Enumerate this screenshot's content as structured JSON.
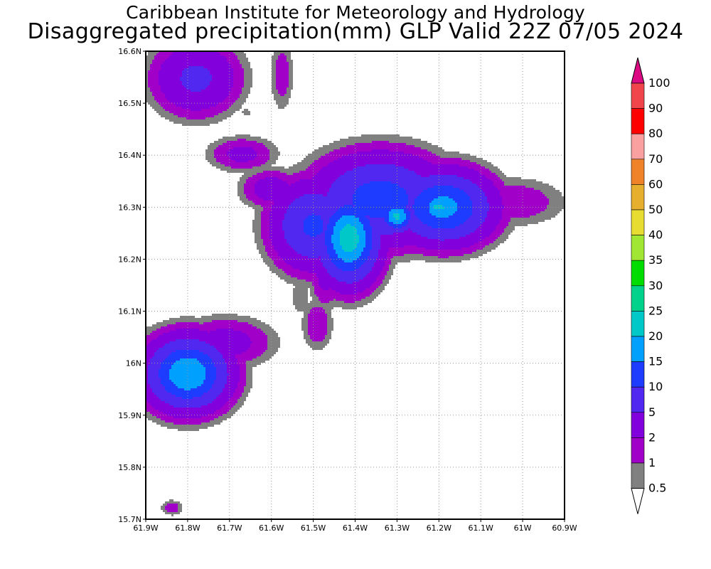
{
  "header": {
    "institution": "Caribbean Institute for Meteorology and Hydrology",
    "product": "Disaggregated precipitation(mm) GLP Valid 22Z 07/05 2024"
  },
  "map": {
    "lon_range": [
      -61.9,
      -60.9
    ],
    "lat_range": [
      15.7,
      16.6
    ],
    "grid": "dotted",
    "x_ticks": [
      "61.9W",
      "61.8W",
      "61.7W",
      "61.6W",
      "61.5W",
      "61.4W",
      "61.3W",
      "61.2W",
      "61.1W",
      "61W",
      "60.9W"
    ],
    "y_ticks": [
      "15.7N",
      "15.8N",
      "15.9N",
      "16N",
      "16.1N",
      "16.2N",
      "16.3N",
      "16.4N",
      "16.5N",
      "16.6N"
    ]
  },
  "colorbar": {
    "labels": [
      "0.5",
      "1",
      "2",
      "5",
      "10",
      "15",
      "20",
      "25",
      "30",
      "35",
      "40",
      "50",
      "60",
      "70",
      "80",
      "90",
      "100"
    ],
    "colors": [
      "#ffffff",
      "#808080",
      "#a000c8",
      "#8200dc",
      "#5028f0",
      "#1e3cff",
      "#00a0ff",
      "#00c8c8",
      "#00d28c",
      "#00dc00",
      "#a0e632",
      "#e6dc32",
      "#e6af2d",
      "#f08228",
      "#faa0a0",
      "#ff0000",
      "#f0464b",
      "#dc0a82"
    ]
  },
  "precip_cells": [
    {
      "lon": -61.78,
      "lat": 16.548,
      "rx": 0.105,
      "ry": 0.072,
      "peak": 6
    },
    {
      "lon": -61.575,
      "lat": 16.555,
      "rx": 0.03,
      "ry": 0.075,
      "peak": 1.6
    },
    {
      "lon": -61.66,
      "lat": 16.482,
      "rx": 0.018,
      "ry": 0.013,
      "peak": 0.7
    },
    {
      "lon": -61.67,
      "lat": 16.402,
      "rx": 0.085,
      "ry": 0.035,
      "peak": 2.6
    },
    {
      "lon": -61.6,
      "lat": 16.335,
      "rx": 0.075,
      "ry": 0.04,
      "peak": 3.2
    },
    {
      "lon": -61.5,
      "lat": 16.265,
      "rx": 0.1,
      "ry": 0.085,
      "peak": 11
    },
    {
      "lon": -61.415,
      "lat": 16.24,
      "rx": 0.075,
      "ry": 0.085,
      "peak": 23
    },
    {
      "lon": -61.34,
      "lat": 16.315,
      "rx": 0.16,
      "ry": 0.085,
      "peak": 13
    },
    {
      "lon": -61.3,
      "lat": 16.283,
      "rx": 0.045,
      "ry": 0.032,
      "peak": 21
    },
    {
      "lon": -61.19,
      "lat": 16.3,
      "rx": 0.12,
      "ry": 0.07,
      "peak": 17
    },
    {
      "lon": -61.2,
      "lat": 16.3,
      "rx": 0.045,
      "ry": 0.022,
      "peak": 22
    },
    {
      "lon": -61.02,
      "lat": 16.31,
      "rx": 0.13,
      "ry": 0.05,
      "peak": 1.8
    },
    {
      "lon": -61.47,
      "lat": 16.175,
      "rx": 0.04,
      "ry": 0.07,
      "peak": 3
    },
    {
      "lon": -61.49,
      "lat": 16.075,
      "rx": 0.04,
      "ry": 0.055,
      "peak": 1.8
    },
    {
      "lon": -61.53,
      "lat": 16.13,
      "rx": 0.03,
      "ry": 0.05,
      "peak": 0.9
    },
    {
      "lon": -61.8,
      "lat": 15.98,
      "rx": 0.1,
      "ry": 0.07,
      "peak": 20
    },
    {
      "lon": -61.71,
      "lat": 16.04,
      "rx": 0.12,
      "ry": 0.05,
      "peak": 3
    },
    {
      "lon": -61.89,
      "lat": 15.99,
      "rx": 0.06,
      "ry": 0.07,
      "peak": 3.5
    },
    {
      "lon": -61.837,
      "lat": 15.722,
      "rx": 0.03,
      "ry": 0.017,
      "peak": 1.5
    }
  ]
}
